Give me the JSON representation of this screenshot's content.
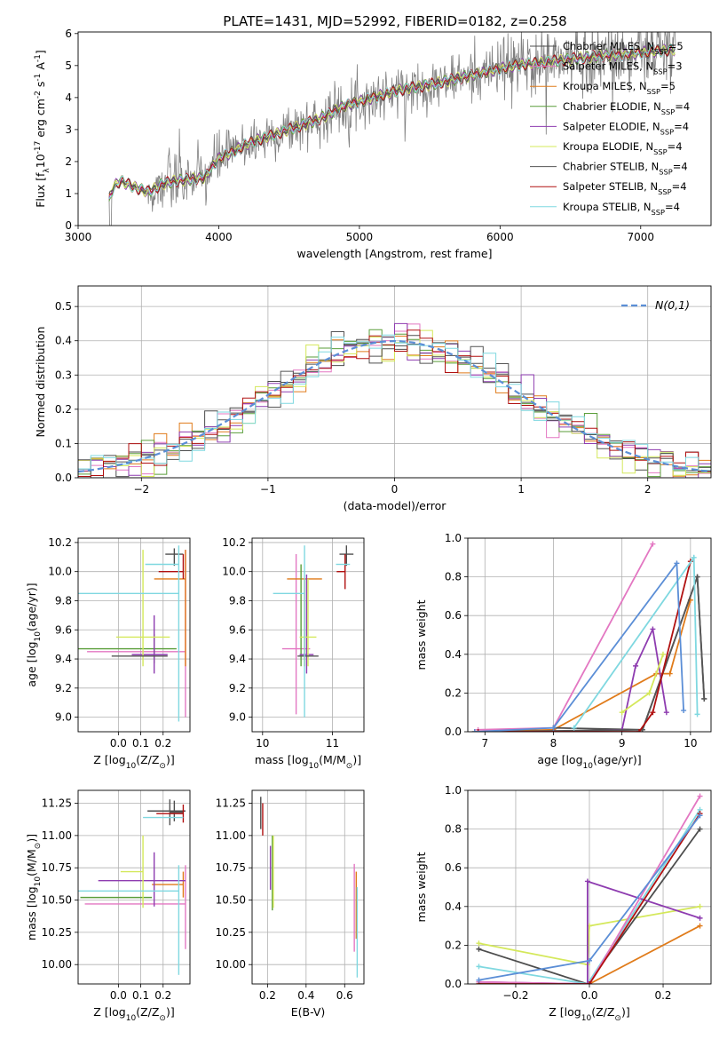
{
  "figure": {
    "title": "PLATE=1431, MJD=52992, FIBERID=0182, z=0.258"
  },
  "models": [
    {
      "key": "chab_miles",
      "label": "Chabrier MILES, N$_{SSP}$=5",
      "color": "#4d4d4d"
    },
    {
      "key": "salp_miles",
      "label": "Salpeter MILES, N$_{SSP}$=3",
      "color": "#e377c2"
    },
    {
      "key": "krou_miles",
      "label": "Kroupa MILES, N$_{SSP}$=5",
      "color": "#e07b1a"
    },
    {
      "key": "chab_elodie",
      "label": "Chabrier ELODIE, N$_{SSP}$=4",
      "color": "#5a9e3a"
    },
    {
      "key": "salp_elodie",
      "label": "Salpeter ELODIE, N$_{SSP}$=4",
      "color": "#8e3cb0"
    },
    {
      "key": "krou_elodie",
      "label": "Kroupa ELODIE, N$_{SSP}$=4",
      "color": "#d4e85a"
    },
    {
      "key": "chab_stelib",
      "label": "Chabrier STELIB, N$_{SSP}$=4",
      "color": "#555555"
    },
    {
      "key": "salp_stelib",
      "label": "Salpeter STELIB, N$_{SSP}$=4",
      "color": "#b01010"
    },
    {
      "key": "krou_stelib",
      "label": "Kroupa STELIB, N$_{SSP}$=4",
      "color": "#7fd8e0"
    }
  ],
  "chart_data": [
    {
      "id": "spectrum",
      "type": "line",
      "xlabel": "wavelength [Angstrom, rest frame]",
      "ylabel": "Flux [f$_{\\lambda}$10$^{-17}$ erg cm$^{-2}$ s$^{-1}$ A$^{-1}$]",
      "xlim": [
        3000,
        7500
      ],
      "ylim": [
        0,
        6.05
      ],
      "xticks": [
        3000,
        4000,
        5000,
        6000,
        7000
      ],
      "yticks": [
        0,
        1,
        2,
        3,
        4,
        5,
        6
      ],
      "data_color": "#808080",
      "data_range": [
        3220,
        7250
      ],
      "model_range": [
        3220,
        7250
      ],
      "model_continuum": {
        "x": [
          3220,
          3250,
          3300,
          3400,
          3500,
          3600,
          3700,
          3800,
          3900,
          4000,
          4100,
          4200,
          4300,
          4500,
          4700,
          4900,
          5100,
          5300,
          5500,
          5700,
          5900,
          6100,
          6300,
          6500,
          6700,
          6900,
          7100,
          7250
        ],
        "y": [
          0.8,
          1.2,
          1.4,
          1.2,
          1.05,
          1.3,
          1.4,
          1.45,
          1.5,
          2.1,
          2.3,
          2.55,
          2.7,
          3.0,
          3.3,
          3.75,
          4.0,
          4.25,
          4.4,
          4.6,
          4.8,
          5.0,
          5.1,
          5.2,
          5.3,
          5.35,
          5.45,
          5.5
        ]
      },
      "legend": "upper right"
    },
    {
      "id": "residuals",
      "type": "bar",
      "xlabel": "(data-model)/error",
      "ylabel": "Normed distribution",
      "xlim": [
        -2.5,
        2.5
      ],
      "ylim": [
        0,
        0.56
      ],
      "xticks": [
        -2,
        -1,
        0,
        1,
        2
      ],
      "yticks": [
        0.0,
        0.1,
        0.2,
        0.3,
        0.4,
        0.5
      ],
      "bin_width": 0.1,
      "reference": {
        "name": "$\\mathcal{N}(0,1)$",
        "mean": 0,
        "sigma": 1,
        "color": "#5b8ed6",
        "style": "dashed"
      },
      "legend": "upper right"
    },
    {
      "id": "age_vs_Z",
      "type": "scatter",
      "xlabel": "Z [log$_{10}$(Z/Z$_{\\odot}$)]",
      "ylabel": "age  [log$_{10}$(age/yr)]",
      "xlim": [
        -0.18,
        0.32
      ],
      "ylim": [
        8.9,
        10.23
      ],
      "xticks": [
        0.0,
        0.1,
        0.2
      ],
      "yticks": [
        9.0,
        9.2,
        9.4,
        9.6,
        9.8,
        10.0,
        10.2
      ],
      "points": [
        {
          "model": "chab_miles",
          "x": 0.25,
          "y": 10.12,
          "xerr": [
            0.04,
            0.04
          ],
          "yerr": [
            0.08,
            0.04
          ]
        },
        {
          "model": "salp_miles",
          "x": 0.3,
          "y": 9.45,
          "xerr": [
            0.44,
            0.0
          ],
          "yerr": [
            0.45,
            0.7
          ]
        },
        {
          "model": "krou_miles",
          "x": 0.3,
          "y": 9.95,
          "xerr": [
            0.14,
            0.0
          ],
          "yerr": [
            0.6,
            0.2
          ]
        },
        {
          "model": "chab_elodie",
          "x": 0.16,
          "y": 9.47,
          "xerr": [
            0.35,
            0.1
          ],
          "yerr": [
            0.1,
            0.1
          ]
        },
        {
          "model": "salp_elodie",
          "x": 0.16,
          "y": 9.43,
          "xerr": [
            0.1,
            0.06
          ],
          "yerr": [
            0.13,
            0.27
          ]
        },
        {
          "model": "krou_elodie",
          "x": 0.11,
          "y": 9.55,
          "xerr": [
            0.12,
            0.12
          ],
          "yerr": [
            0.2,
            0.6
          ]
        },
        {
          "model": "chab_stelib",
          "x": 0.22,
          "y": 9.42,
          "xerr": [
            0.25,
            0.0
          ],
          "yerr": [
            0.0,
            0.0
          ]
        },
        {
          "model": "salp_stelib",
          "x": 0.29,
          "y": 10.0,
          "xerr": [
            0.11,
            0.0
          ],
          "yerr": [
            0.05,
            0.12
          ]
        },
        {
          "model": "krou_stelib",
          "x": 0.27,
          "y": 9.85,
          "xerr": [
            0.45,
            0.0
          ],
          "yerr": [
            0.88,
            0.33
          ]
        },
        {
          "model": "krou_stelib",
          "x": 0.21,
          "y": 10.05,
          "xerr": [
            0.09,
            0.06
          ],
          "yerr": [
            0.0,
            0.0
          ]
        }
      ]
    },
    {
      "id": "age_vs_mass",
      "type": "scatter",
      "xlabel": "mass [log$_{10}$(M/M$_{\\odot}$)]",
      "ylabel": "",
      "xlim": [
        9.85,
        11.45
      ],
      "ylim": [
        8.9,
        10.23
      ],
      "xticks": [
        10,
        11
      ],
      "yticks": [
        9.0,
        9.2,
        9.4,
        9.6,
        9.8,
        10.0,
        10.2
      ],
      "points": [
        {
          "model": "chab_miles",
          "x": 11.2,
          "y": 10.12,
          "xerr": [
            0.1,
            0.1
          ],
          "yerr": [
            0.08,
            0.06
          ]
        },
        {
          "model": "salp_miles",
          "x": 10.48,
          "y": 9.47,
          "xerr": [
            0.2,
            0.2
          ],
          "yerr": [
            0.45,
            0.65
          ]
        },
        {
          "model": "krou_miles",
          "x": 10.6,
          "y": 9.95,
          "xerr": [
            0.25,
            0.25
          ],
          "yerr": [
            0.6,
            0.0
          ]
        },
        {
          "model": "chab_elodie",
          "x": 10.55,
          "y": 9.5,
          "xerr": [
            0.0,
            0.0
          ],
          "yerr": [
            0.15,
            0.55
          ]
        },
        {
          "model": "salp_elodie",
          "x": 10.63,
          "y": 9.43,
          "xerr": [
            0.1,
            0.1
          ],
          "yerr": [
            0.13,
            0.55
          ]
        },
        {
          "model": "krou_elodie",
          "x": 10.65,
          "y": 9.55,
          "xerr": [
            0.12,
            0.12
          ],
          "yerr": [
            0.2,
            0.4
          ]
        },
        {
          "model": "chab_stelib",
          "x": 10.8,
          "y": 9.42,
          "xerr": [
            0.3,
            0.0
          ],
          "yerr": [
            0.0,
            0.0
          ]
        },
        {
          "model": "salp_stelib",
          "x": 11.18,
          "y": 10.0,
          "xerr": [
            0.12,
            0.0
          ],
          "yerr": [
            0.12,
            0.12
          ]
        },
        {
          "model": "krou_stelib",
          "x": 10.6,
          "y": 9.85,
          "xerr": [
            0.45,
            0.0
          ],
          "yerr": [
            0.85,
            0.33
          ]
        },
        {
          "model": "krou_stelib",
          "x": 11.15,
          "y": 10.05,
          "xerr": [
            0.1,
            0.1
          ],
          "yerr": [
            0.0,
            0.0
          ]
        }
      ]
    },
    {
      "id": "mass_weight_vs_age",
      "type": "line",
      "xlabel": "age  [log$_{10}$(age/yr)]",
      "ylabel": "mass weight",
      "xlim": [
        6.75,
        10.3
      ],
      "ylim": [
        0.0,
        1.0
      ],
      "xticks": [
        7,
        8,
        9,
        10
      ],
      "yticks": [
        0.0,
        0.2,
        0.4,
        0.6,
        0.8,
        1.0
      ],
      "series": [
        {
          "model": "salp_miles",
          "x": [
            6.9,
            8.0,
            9.45
          ],
          "y": [
            0.01,
            0.02,
            0.97
          ]
        },
        {
          "model": "krou_miles",
          "x": [
            6.85,
            8.0,
            9.5,
            9.7,
            10.0
          ],
          "y": [
            0.0,
            0.01,
            0.3,
            0.3,
            0.68
          ]
        },
        {
          "model": "chab_miles",
          "x": [
            8.0,
            9.3,
            10.1,
            10.2
          ],
          "y": [
            0.02,
            0.01,
            0.8,
            0.17
          ]
        },
        {
          "model": "salp_elodie",
          "x": [
            8.0,
            9.0,
            9.2,
            9.45,
            9.65
          ],
          "y": [
            0.0,
            0.01,
            0.34,
            0.53,
            0.1
          ]
        },
        {
          "model": "krou_elodie",
          "x": [
            9.0,
            9.4,
            9.6
          ],
          "y": [
            0.1,
            0.2,
            0.4
          ]
        },
        {
          "model": "chab_stelib",
          "x": [
            6.9,
            9.3,
            10.1,
            10.2
          ],
          "y": [
            0.0,
            0.01,
            0.8,
            0.17
          ]
        },
        {
          "model": "salp_stelib",
          "x": [
            6.9,
            9.25,
            9.45,
            10.0
          ],
          "y": [
            0.0,
            0.0,
            0.1,
            0.88
          ]
        },
        {
          "model": "krou_stelib",
          "x": [
            8.3,
            10.05,
            10.1
          ],
          "y": [
            0.02,
            0.9,
            0.09
          ]
        },
        {
          "model": "krou_miles2",
          "color": "#5b8ed6",
          "x": [
            6.85,
            8.0,
            9.8,
            9.9
          ],
          "y": [
            0.0,
            0.02,
            0.87,
            0.11
          ]
        }
      ]
    },
    {
      "id": "mass_vs_Z",
      "type": "scatter",
      "xlabel": "Z [log$_{10}$(Z/Z$_{\\odot}$)]",
      "ylabel": "mass [log$_{10}$(M/M$_{\\odot}$)]",
      "xlim": [
        -0.18,
        0.32
      ],
      "ylim": [
        9.85,
        11.35
      ],
      "xticks": [
        0.0,
        0.1,
        0.2
      ],
      "yticks": [
        10.0,
        10.25,
        10.5,
        10.75,
        11.0,
        11.25
      ],
      "points": [
        {
          "model": "chab_miles",
          "x": 0.25,
          "y": 11.19,
          "xerr": [
            0.12,
            0.05
          ],
          "yerr": [
            0.08,
            0.08
          ]
        },
        {
          "model": "salp_miles",
          "x": 0.3,
          "y": 10.47,
          "xerr": [
            0.45,
            0.0
          ],
          "yerr": [
            0.35,
            0.3
          ]
        },
        {
          "model": "krou_miles",
          "x": 0.29,
          "y": 10.62,
          "xerr": [
            0.14,
            0.0
          ],
          "yerr": [
            0.1,
            0.1
          ]
        },
        {
          "model": "chab_elodie",
          "x": 0.15,
          "y": 10.52,
          "xerr": [
            0.32,
            0.0
          ],
          "yerr": [
            0.0,
            0.0
          ]
        },
        {
          "model": "salp_elodie",
          "x": 0.16,
          "y": 10.65,
          "xerr": [
            0.25,
            0.14
          ],
          "yerr": [
            0.2,
            0.22
          ]
        },
        {
          "model": "krou_elodie",
          "x": 0.11,
          "y": 10.72,
          "xerr": [
            0.1,
            0.0
          ],
          "yerr": [
            0.28,
            0.28
          ]
        },
        {
          "model": "chab_stelib",
          "x": 0.23,
          "y": 11.18,
          "xerr": [
            0.0,
            0.06
          ],
          "yerr": [
            0.1,
            0.1
          ]
        },
        {
          "model": "salp_stelib",
          "x": 0.29,
          "y": 11.17,
          "xerr": [
            0.12,
            0.0
          ],
          "yerr": [
            0.07,
            0.07
          ]
        },
        {
          "model": "krou_stelib",
          "x": 0.27,
          "y": 10.57,
          "xerr": [
            0.45,
            0.0
          ],
          "yerr": [
            0.65,
            0.2
          ]
        },
        {
          "model": "krou_stelib",
          "x": 0.21,
          "y": 11.14,
          "xerr": [
            0.1,
            0.08
          ],
          "yerr": [
            0.0,
            0.0
          ]
        }
      ]
    },
    {
      "id": "mass_vs_EBV",
      "type": "scatter",
      "xlabel": "E(B-V)",
      "ylabel": "",
      "xlim": [
        0.12,
        0.7
      ],
      "ylim": [
        9.85,
        11.35
      ],
      "xticks": [
        0.2,
        0.4,
        0.6
      ],
      "yticks": [
        10.0,
        10.25,
        10.5,
        10.75,
        11.0,
        11.25
      ],
      "points": [
        {
          "model": "chab_miles",
          "x": 0.165,
          "y": 11.15,
          "yerr": [
            0.1,
            0.15
          ]
        },
        {
          "model": "salp_stelib",
          "x": 0.175,
          "y": 11.1,
          "yerr": [
            0.1,
            0.15
          ]
        },
        {
          "model": "chab_elodie",
          "x": 0.225,
          "y": 10.7,
          "yerr": [
            0.28,
            0.3
          ]
        },
        {
          "model": "salp_elodie",
          "x": 0.215,
          "y": 10.75,
          "yerr": [
            0.17,
            0.17
          ]
        },
        {
          "model": "krou_elodie",
          "x": 0.23,
          "y": 10.72,
          "yerr": [
            0.28,
            0.28
          ]
        },
        {
          "model": "salp_miles",
          "x": 0.65,
          "y": 10.5,
          "yerr": [
            0.4,
            0.28
          ]
        },
        {
          "model": "krou_miles",
          "x": 0.66,
          "y": 10.45,
          "yerr": [
            0.25,
            0.27
          ]
        },
        {
          "model": "krou_stelib",
          "x": 0.665,
          "y": 10.2,
          "yerr": [
            0.3,
            0.4
          ]
        }
      ]
    },
    {
      "id": "mass_weight_vs_Z",
      "type": "line",
      "xlabel": "Z [log$_{10}$(Z/Z$_{\\odot}$)]",
      "ylabel": "mass weight",
      "xlim": [
        -0.33,
        0.33
      ],
      "ylim": [
        0.0,
        1.0
      ],
      "xticks": [
        -0.2,
        0.0,
        0.2
      ],
      "yticks": [
        0.0,
        0.2,
        0.4,
        0.6,
        0.8,
        1.0
      ],
      "series": [
        {
          "model": "krou_elodie",
          "x": [
            -0.3,
            -0.005,
            0.0,
            0.3
          ],
          "y": [
            0.21,
            0.1,
            0.3,
            0.4
          ]
        },
        {
          "model": "chab_miles",
          "x": [
            -0.3,
            -0.005,
            0.3
          ],
          "y": [
            0.18,
            0.0,
            0.8
          ]
        },
        {
          "model": "krou_stelib",
          "x": [
            -0.3,
            -0.005,
            0.3
          ],
          "y": [
            0.09,
            0.0,
            0.9
          ]
        },
        {
          "model": "salp_elodie",
          "x": [
            -0.3,
            -0.005,
            -0.005,
            0.3
          ],
          "y": [
            0.01,
            0.0,
            0.53,
            0.34
          ]
        },
        {
          "model": "krou_miles",
          "x": [
            -0.3,
            0.0,
            0.3
          ],
          "y": [
            0.0,
            0.0,
            0.3
          ]
        },
        {
          "model": "salp_miles",
          "x": [
            -0.3,
            0.0,
            0.3
          ],
          "y": [
            0.01,
            0.0,
            0.97
          ]
        },
        {
          "model": "salp_stelib",
          "x": [
            -0.3,
            0.0,
            0.3
          ],
          "y": [
            0.0,
            0.0,
            0.88
          ]
        },
        {
          "model": "krou_miles2",
          "color": "#5b8ed6",
          "x": [
            -0.3,
            0.0,
            0.3
          ],
          "y": [
            0.02,
            0.12,
            0.87
          ]
        }
      ]
    }
  ]
}
